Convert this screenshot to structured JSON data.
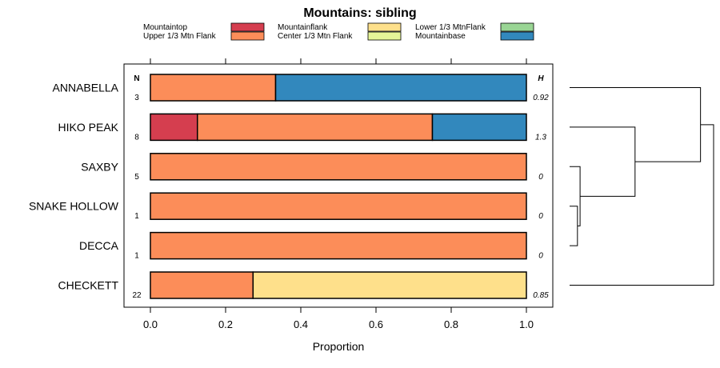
{
  "chart_data": {
    "type": "bar",
    "orientation": "horizontal",
    "stacked": true,
    "title": "Mountains: sibling",
    "xlabel": "Proportion",
    "xlim": [
      0,
      1
    ],
    "xticks": [
      "0.0",
      "0.2",
      "0.4",
      "0.6",
      "0.8",
      "1.0"
    ],
    "n_header": "N",
    "h_header": "H",
    "legend": [
      {
        "label": "Mountaintop",
        "color": "#d53e4f"
      },
      {
        "label": "Upper 1/3 Mtn Flank",
        "color": "#fc8d59"
      },
      {
        "label": "Mountainflank",
        "color": "#fee08b"
      },
      {
        "label": "Center 1/3 Mtn Flank",
        "color": "#e6f598"
      },
      {
        "label": "Lower 1/3 MtnFlank",
        "color": "#99d594"
      },
      {
        "label": "Mountainbase",
        "color": "#3288bd"
      }
    ],
    "rows": [
      {
        "label": "ANNABELLA",
        "n": "3",
        "h": "0.92",
        "segments": [
          {
            "cat": "Upper 1/3 Mtn Flank",
            "value": 0.333
          },
          {
            "cat": "Mountainbase",
            "value": 0.667
          }
        ]
      },
      {
        "label": "HIKO PEAK",
        "n": "8",
        "h": "1.3",
        "segments": [
          {
            "cat": "Mountaintop",
            "value": 0.125
          },
          {
            "cat": "Upper 1/3 Mtn Flank",
            "value": 0.625
          },
          {
            "cat": "Mountainbase",
            "value": 0.25
          }
        ]
      },
      {
        "label": "SAXBY",
        "n": "5",
        "h": "0",
        "segments": [
          {
            "cat": "Upper 1/3 Mtn Flank",
            "value": 1.0
          }
        ]
      },
      {
        "label": "SNAKE HOLLOW",
        "n": "1",
        "h": "0",
        "segments": [
          {
            "cat": "Upper 1/3 Mtn Flank",
            "value": 1.0
          }
        ]
      },
      {
        "label": "DECCA",
        "n": "1",
        "h": "0",
        "segments": [
          {
            "cat": "Upper 1/3 Mtn Flank",
            "value": 1.0
          }
        ]
      },
      {
        "label": "CHECKETT",
        "n": "22",
        "h": "0.85",
        "segments": [
          {
            "cat": "Upper 1/3 Mtn Flank",
            "value": 0.273
          },
          {
            "cat": "Mountainflank",
            "value": 0.727
          }
        ]
      }
    ],
    "dendrogram": {
      "merges": [
        {
          "a": "SNAKE HOLLOW",
          "b": "DECCA",
          "height": 0.03
        },
        {
          "a": "SAXBY",
          "b": "SNAKE HOLLOW+DECCA",
          "height": 0.04
        },
        {
          "a": "HIKO PEAK",
          "b": "SAXBY+SNAKE HOLLOW+DECCA",
          "height": 0.25
        },
        {
          "a": "ANNABELLA",
          "b": "HIKO PEAK+SAXBY+SNAKE HOLLOW+DECCA",
          "height": 0.5
        },
        {
          "a": "CHECKETT",
          "b": "ANNABELLA+HIKO PEAK+SAXBY+SNAKE HOLLOW+DECCA",
          "height": 0.55
        }
      ]
    }
  }
}
